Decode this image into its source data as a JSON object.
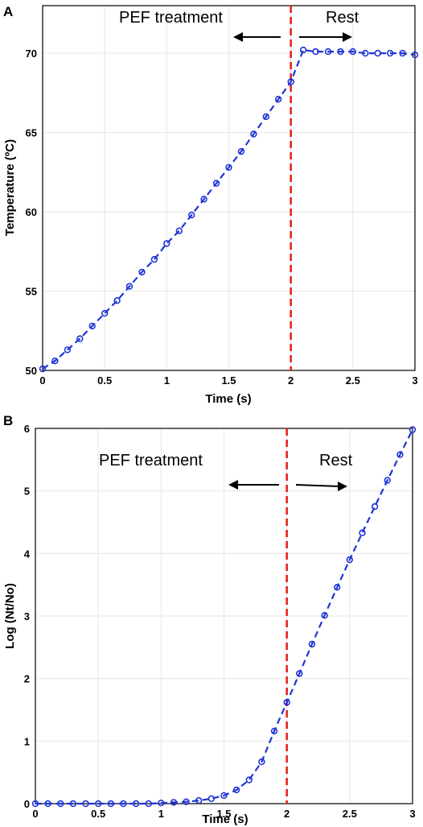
{
  "chart_data": [
    {
      "panel": "A",
      "type": "line",
      "xlabel": "Time (s)",
      "ylabel": "Temperature (ºC)",
      "xlim": [
        0,
        3
      ],
      "ylim": [
        50,
        73
      ],
      "xticks": [
        "0",
        "0.5",
        "1",
        "1.5",
        "2",
        "2.5",
        "3"
      ],
      "yticks": [
        "50",
        "55",
        "60",
        "65",
        "70"
      ],
      "grid": true,
      "vline_x": 2,
      "annotations": [
        {
          "text": "PEF treatment",
          "arrow": "left"
        },
        {
          "text": "Rest",
          "arrow": "right"
        }
      ],
      "x": [
        0,
        0.1,
        0.2,
        0.3,
        0.4,
        0.5,
        0.6,
        0.7,
        0.8,
        0.9,
        1.0,
        1.1,
        1.2,
        1.3,
        1.4,
        1.5,
        1.6,
        1.7,
        1.8,
        1.9,
        2.0,
        2.1,
        2.2,
        2.3,
        2.4,
        2.5,
        2.6,
        2.7,
        2.8,
        2.9,
        3.0
      ],
      "y": [
        50.1,
        50.6,
        51.3,
        52.0,
        52.8,
        53.6,
        54.4,
        55.3,
        56.2,
        57.0,
        58.0,
        58.8,
        59.8,
        60.8,
        61.8,
        62.8,
        63.8,
        64.9,
        66.0,
        67.1,
        68.2,
        70.2,
        70.1,
        70.1,
        70.1,
        70.1,
        70.0,
        70.0,
        70.0,
        70.0,
        69.9
      ]
    },
    {
      "panel": "B",
      "type": "line",
      "xlabel": "Time (s)",
      "ylabel": "Log (Nt/No)",
      "xlim": [
        0,
        3
      ],
      "ylim": [
        0,
        6
      ],
      "xticks": [
        "0",
        "0.5",
        "1",
        "1.5",
        "2",
        "2.5",
        "3"
      ],
      "yticks": [
        "0",
        "1",
        "2",
        "3",
        "4",
        "5",
        "6"
      ],
      "grid": true,
      "vline_x": 2,
      "annotations": [
        {
          "text": "PEF treatment",
          "arrow": "left"
        },
        {
          "text": "Rest",
          "arrow": "right"
        }
      ],
      "x": [
        0,
        0.1,
        0.2,
        0.3,
        0.4,
        0.5,
        0.6,
        0.7,
        0.8,
        0.9,
        1.0,
        1.1,
        1.2,
        1.3,
        1.4,
        1.5,
        1.6,
        1.7,
        1.8,
        1.9,
        2.0,
        2.1,
        2.2,
        2.3,
        2.4,
        2.5,
        2.6,
        2.7,
        2.8,
        2.9,
        3.0
      ],
      "y": [
        0,
        0,
        0,
        0,
        0,
        0,
        0,
        0,
        0,
        0,
        0.01,
        0.02,
        0.03,
        0.05,
        0.08,
        0.13,
        0.22,
        0.38,
        0.67,
        1.16,
        1.62,
        2.08,
        2.55,
        3.01,
        3.46,
        3.9,
        4.33,
        4.75,
        5.17,
        5.58,
        5.98
      ]
    }
  ]
}
